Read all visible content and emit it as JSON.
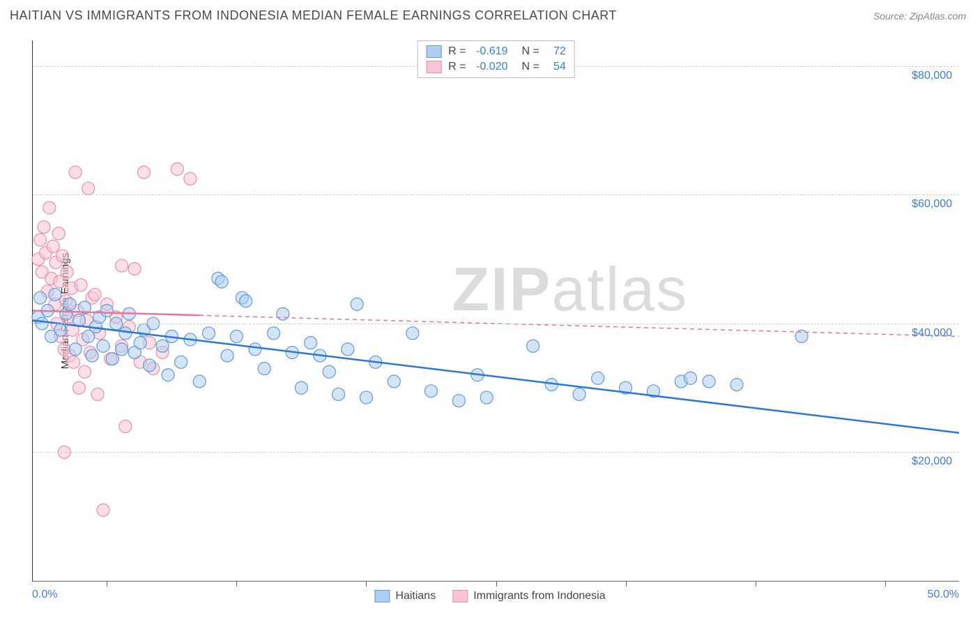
{
  "title": "HAITIAN VS IMMIGRANTS FROM INDONESIA MEDIAN FEMALE EARNINGS CORRELATION CHART",
  "source_prefix": "Source: ",
  "source_name": "ZipAtlas.com",
  "yaxis_label": "Median Female Earnings",
  "watermark_bold": "ZIP",
  "watermark_light": "atlas",
  "xaxis": {
    "min": 0.0,
    "max": 50.0,
    "min_label": "0.0%",
    "max_label": "50.0%",
    "tick_positions_pct": [
      8,
      22,
      36,
      50,
      64,
      78,
      92
    ]
  },
  "yaxis": {
    "min": 0,
    "max": 84000,
    "gridlines": [
      {
        "value": 20000,
        "label": "$20,000"
      },
      {
        "value": 40000,
        "label": "$40,000"
      },
      {
        "value": 60000,
        "label": "$60,000"
      },
      {
        "value": 80000,
        "label": "$80,000"
      }
    ]
  },
  "series": [
    {
      "name": "Haitians",
      "fill": "#aecdf0",
      "stroke": "#5f9ad9",
      "fill_opacity": 0.55,
      "line_color": "#2b77d4",
      "line_width": 2.5,
      "R_label": "R =",
      "R_value": "-0.619",
      "N_label": "N =",
      "N_value": "72",
      "trend_start": {
        "x": 0,
        "y": 40500
      },
      "trend_end": {
        "x": 50,
        "y": 23000
      },
      "trend_solid_until_x": 50,
      "points": [
        {
          "x": 0.3,
          "y": 41000
        },
        {
          "x": 0.4,
          "y": 44000
        },
        {
          "x": 0.5,
          "y": 40000
        },
        {
          "x": 0.8,
          "y": 42000
        },
        {
          "x": 1.0,
          "y": 38000
        },
        {
          "x": 1.2,
          "y": 44500
        },
        {
          "x": 1.5,
          "y": 39000
        },
        {
          "x": 1.8,
          "y": 41500
        },
        {
          "x": 2.0,
          "y": 43000
        },
        {
          "x": 2.3,
          "y": 36000
        },
        {
          "x": 2.5,
          "y": 40500
        },
        {
          "x": 2.8,
          "y": 42500
        },
        {
          "x": 3.0,
          "y": 38000
        },
        {
          "x": 3.2,
          "y": 35000
        },
        {
          "x": 3.4,
          "y": 39500
        },
        {
          "x": 3.6,
          "y": 41000
        },
        {
          "x": 3.8,
          "y": 36500
        },
        {
          "x": 4.0,
          "y": 42000
        },
        {
          "x": 4.3,
          "y": 34500
        },
        {
          "x": 4.5,
          "y": 40000
        },
        {
          "x": 4.8,
          "y": 36000
        },
        {
          "x": 5.0,
          "y": 38500
        },
        {
          "x": 5.2,
          "y": 41500
        },
        {
          "x": 5.5,
          "y": 35500
        },
        {
          "x": 5.8,
          "y": 37000
        },
        {
          "x": 6.0,
          "y": 39000
        },
        {
          "x": 6.3,
          "y": 33500
        },
        {
          "x": 6.5,
          "y": 40000
        },
        {
          "x": 7.0,
          "y": 36500
        },
        {
          "x": 7.3,
          "y": 32000
        },
        {
          "x": 7.5,
          "y": 38000
        },
        {
          "x": 8.0,
          "y": 34000
        },
        {
          "x": 8.5,
          "y": 37500
        },
        {
          "x": 9.0,
          "y": 31000
        },
        {
          "x": 9.5,
          "y": 38500
        },
        {
          "x": 10.0,
          "y": 47000
        },
        {
          "x": 10.2,
          "y": 46500
        },
        {
          "x": 10.5,
          "y": 35000
        },
        {
          "x": 11.0,
          "y": 38000
        },
        {
          "x": 11.3,
          "y": 44000
        },
        {
          "x": 11.5,
          "y": 43500
        },
        {
          "x": 12.0,
          "y": 36000
        },
        {
          "x": 12.5,
          "y": 33000
        },
        {
          "x": 13.0,
          "y": 38500
        },
        {
          "x": 13.5,
          "y": 41500
        },
        {
          "x": 14.0,
          "y": 35500
        },
        {
          "x": 14.5,
          "y": 30000
        },
        {
          "x": 15.0,
          "y": 37000
        },
        {
          "x": 15.5,
          "y": 35000
        },
        {
          "x": 16.0,
          "y": 32500
        },
        {
          "x": 16.5,
          "y": 29000
        },
        {
          "x": 17.0,
          "y": 36000
        },
        {
          "x": 17.5,
          "y": 43000
        },
        {
          "x": 18.0,
          "y": 28500
        },
        {
          "x": 18.5,
          "y": 34000
        },
        {
          "x": 19.5,
          "y": 31000
        },
        {
          "x": 20.5,
          "y": 38500
        },
        {
          "x": 21.5,
          "y": 29500
        },
        {
          "x": 23.0,
          "y": 28000
        },
        {
          "x": 24.0,
          "y": 32000
        },
        {
          "x": 24.5,
          "y": 28500
        },
        {
          "x": 27.0,
          "y": 36500
        },
        {
          "x": 28.0,
          "y": 30500
        },
        {
          "x": 29.5,
          "y": 29000
        },
        {
          "x": 30.5,
          "y": 31500
        },
        {
          "x": 32.0,
          "y": 30000
        },
        {
          "x": 33.5,
          "y": 29500
        },
        {
          "x": 35.0,
          "y": 31000
        },
        {
          "x": 35.5,
          "y": 31500
        },
        {
          "x": 36.5,
          "y": 31000
        },
        {
          "x": 38.0,
          "y": 30500
        },
        {
          "x": 41.5,
          "y": 38000
        }
      ]
    },
    {
      "name": "Immigrants from Indonesia",
      "fill": "#f7c5d3",
      "stroke": "#e98fab",
      "fill_opacity": 0.55,
      "line_color": "#e77597",
      "line_width": 2.5,
      "R_label": "R =",
      "R_value": "-0.020",
      "N_label": "N =",
      "N_value": "54",
      "trend_start": {
        "x": 0,
        "y": 42000
      },
      "trend_end": {
        "x": 50,
        "y": 38000
      },
      "trend_solid_until_x": 9,
      "points": [
        {
          "x": 0.3,
          "y": 50000
        },
        {
          "x": 0.4,
          "y": 53000
        },
        {
          "x": 0.5,
          "y": 48000
        },
        {
          "x": 0.6,
          "y": 55000
        },
        {
          "x": 0.7,
          "y": 51000
        },
        {
          "x": 0.8,
          "y": 45000
        },
        {
          "x": 0.9,
          "y": 58000
        },
        {
          "x": 1.0,
          "y": 47000
        },
        {
          "x": 1.1,
          "y": 52000
        },
        {
          "x": 1.2,
          "y": 43000
        },
        {
          "x": 1.25,
          "y": 49500
        },
        {
          "x": 1.3,
          "y": 40000
        },
        {
          "x": 1.4,
          "y": 54000
        },
        {
          "x": 1.45,
          "y": 46500
        },
        {
          "x": 1.5,
          "y": 38000
        },
        {
          "x": 1.6,
          "y": 50500
        },
        {
          "x": 1.7,
          "y": 36000
        },
        {
          "x": 1.8,
          "y": 43500
        },
        {
          "x": 1.85,
          "y": 48000
        },
        {
          "x": 1.9,
          "y": 41000
        },
        {
          "x": 2.0,
          "y": 35000
        },
        {
          "x": 2.1,
          "y": 45500
        },
        {
          "x": 2.15,
          "y": 39000
        },
        {
          "x": 2.2,
          "y": 34000
        },
        {
          "x": 2.3,
          "y": 63500
        },
        {
          "x": 2.4,
          "y": 42000
        },
        {
          "x": 2.5,
          "y": 30000
        },
        {
          "x": 2.6,
          "y": 46000
        },
        {
          "x": 2.7,
          "y": 37500
        },
        {
          "x": 2.8,
          "y": 32500
        },
        {
          "x": 2.9,
          "y": 40500
        },
        {
          "x": 3.0,
          "y": 61000
        },
        {
          "x": 3.1,
          "y": 35500
        },
        {
          "x": 3.2,
          "y": 44000
        },
        {
          "x": 3.35,
          "y": 44500
        },
        {
          "x": 3.5,
          "y": 29000
        },
        {
          "x": 3.6,
          "y": 38500
        },
        {
          "x": 3.8,
          "y": 11000
        },
        {
          "x": 4.0,
          "y": 43000
        },
        {
          "x": 4.2,
          "y": 34500
        },
        {
          "x": 4.5,
          "y": 41000
        },
        {
          "x": 4.8,
          "y": 36500
        },
        {
          "x": 5.0,
          "y": 24000
        },
        {
          "x": 5.2,
          "y": 39500
        },
        {
          "x": 5.5,
          "y": 48500
        },
        {
          "x": 5.8,
          "y": 34000
        },
        {
          "x": 6.0,
          "y": 63500
        },
        {
          "x": 6.3,
          "y": 37000
        },
        {
          "x": 6.5,
          "y": 33000
        },
        {
          "x": 7.0,
          "y": 35500
        },
        {
          "x": 1.7,
          "y": 20000
        },
        {
          "x": 7.8,
          "y": 64000
        },
        {
          "x": 8.5,
          "y": 62500
        },
        {
          "x": 4.8,
          "y": 49000
        }
      ]
    }
  ],
  "marker_radius": 9,
  "colors": {
    "title": "#4a4a4a",
    "axis_value": "#3b7dd8",
    "grid": "#cccccc",
    "border": "#333333",
    "source": "#888888"
  }
}
